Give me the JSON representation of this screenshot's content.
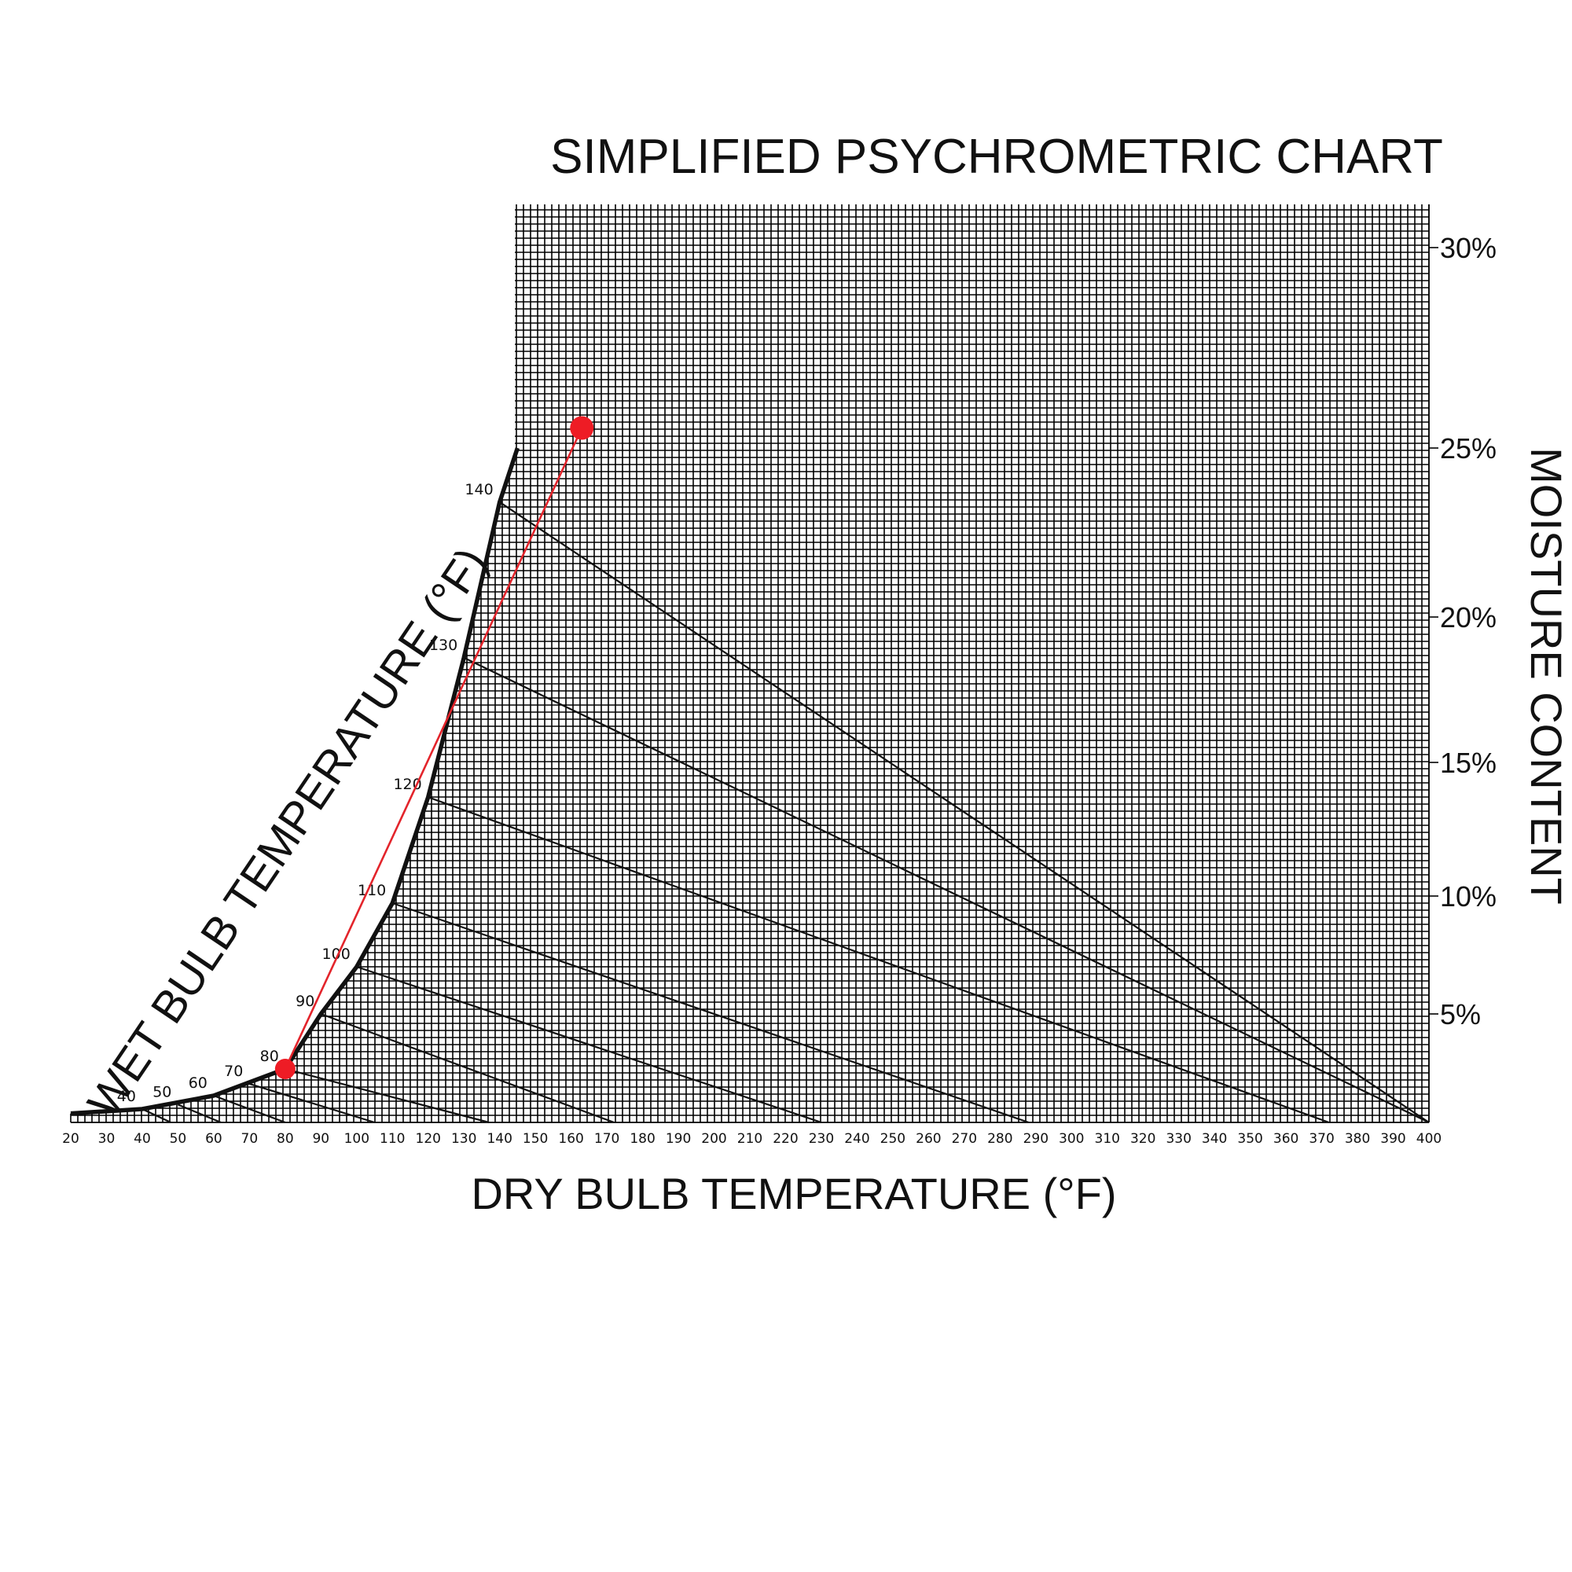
{
  "chart_data": {
    "type": "line",
    "title": "SIMPLIFIED PSYCHROMETRIC CHART",
    "xlabel": "DRY BULB TEMPERATURE (°F)",
    "ylabel": "MOISTURE CONTENT",
    "curve_label": "WET BULB TEMPERATURE (°F)",
    "xlim": [
      20,
      400
    ],
    "ylim": [
      0,
      31
    ],
    "x_ticks": [
      20,
      30,
      40,
      50,
      60,
      70,
      80,
      90,
      100,
      110,
      120,
      130,
      140,
      150,
      160,
      170,
      180,
      190,
      200,
      210,
      220,
      230,
      240,
      250,
      260,
      270,
      280,
      290,
      300,
      310,
      320,
      330,
      340,
      350,
      360,
      370,
      380,
      390,
      400
    ],
    "x_tick_labels": [
      "20",
      "30",
      "40",
      "50",
      "60",
      "70",
      "80",
      "90",
      "100",
      "110",
      "120",
      "130",
      "140",
      "150",
      "160",
      "170",
      "180",
      "190",
      "200",
      "210",
      "220",
      "230",
      "240",
      "250",
      "260",
      "270",
      "280",
      "290",
      "300",
      "310",
      "320",
      "330",
      "340",
      "350",
      "360",
      "370",
      "380",
      "390",
      "400"
    ],
    "y_ticks": [
      5,
      10,
      15,
      20,
      25,
      30
    ],
    "y_tick_labels": [
      "5%",
      "10%",
      "15%",
      "20%",
      "25%",
      "30%"
    ],
    "grid": true,
    "saturation_curve": {
      "name": "saturation",
      "x": [
        20,
        40,
        60,
        80,
        90,
        100,
        110,
        120,
        130,
        140,
        145
      ],
      "y": [
        0.6,
        0.9,
        1.8,
        3.6,
        5.0,
        7.0,
        9.7,
        13.7,
        18.6,
        23.4,
        25.0
      ]
    },
    "wet_bulb_lines": [
      {
        "label": "40",
        "x": [
          40,
          48
        ],
        "y": [
          0.9,
          0
        ]
      },
      {
        "label": "50",
        "x": [
          50,
          62
        ],
        "y": [
          1.2,
          0
        ]
      },
      {
        "label": "60",
        "x": [
          60,
          80
        ],
        "y": [
          1.8,
          0
        ]
      },
      {
        "label": "70",
        "x": [
          70,
          105
        ],
        "y": [
          2.6,
          0
        ]
      },
      {
        "label": "80",
        "x": [
          80,
          137
        ],
        "y": [
          3.6,
          0
        ]
      },
      {
        "label": "90",
        "x": [
          90,
          172
        ],
        "y": [
          5.0,
          0
        ]
      },
      {
        "label": "100",
        "x": [
          100,
          230
        ],
        "y": [
          7.0,
          0
        ]
      },
      {
        "label": "110",
        "x": [
          110,
          288
        ],
        "y": [
          9.7,
          0
        ]
      },
      {
        "label": "120",
        "x": [
          120,
          372
        ],
        "y": [
          13.7,
          0
        ]
      },
      {
        "label": "130",
        "x": [
          130,
          400
        ],
        "y": [
          18.6,
          0
        ]
      },
      {
        "label": "140",
        "x": [
          140,
          400
        ],
        "y": [
          23.4,
          0
        ]
      }
    ],
    "process_line": {
      "name": "process",
      "x": [
        80,
        163
      ],
      "y": [
        3.6,
        25.5
      ]
    }
  }
}
